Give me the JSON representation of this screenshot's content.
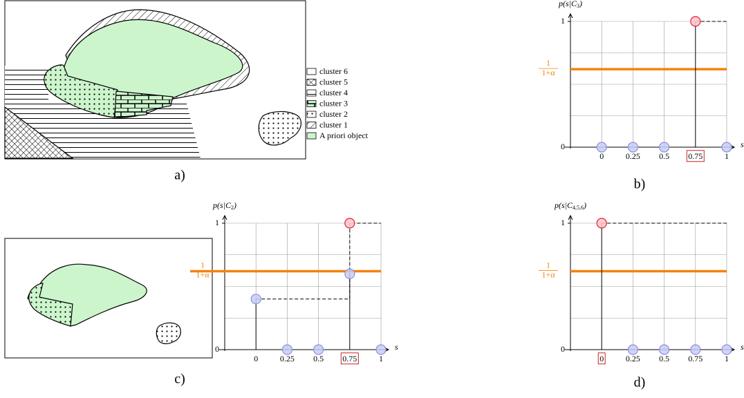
{
  "figure": {
    "panel_labels": [
      "a)",
      "b)",
      "c)",
      "d)"
    ],
    "legend": [
      {
        "label": "cluster 6",
        "pattern": "none"
      },
      {
        "label": "cluster 5",
        "pattern": "cross"
      },
      {
        "label": "cluster 4",
        "pattern": "hlines"
      },
      {
        "label": "cluster 3",
        "pattern": "brick"
      },
      {
        "label": "cluster 2",
        "pattern": "dots"
      },
      {
        "label": "cluster 1",
        "pattern": "diag"
      },
      {
        "label": "A priori object",
        "pattern": "green"
      }
    ]
  },
  "chart_data": [
    {
      "type": "stem",
      "ylabel": {
        "text": "p(s|C",
        "sub": "3",
        "end": ")"
      },
      "xlabel": "s",
      "x": [
        0,
        0.25,
        0.5,
        0.75,
        1
      ],
      "series": [
        {
          "color": "#c8ccf5",
          "edgecolor": "#8a90e0",
          "values": [
            0,
            0,
            0,
            null,
            0
          ]
        },
        {
          "color": "#ffc4cc",
          "edgecolor": "#e0202e",
          "values": [
            null,
            null,
            null,
            1,
            null
          ]
        }
      ],
      "xlim": [
        -0.25,
        1
      ],
      "ylim": [
        0,
        1
      ],
      "xticks": [
        0,
        0.25,
        0.5,
        0.75,
        1
      ],
      "yticks": [
        0,
        1
      ],
      "grid": true,
      "grid_step": 0.25,
      "boxed_xtick": 0.75,
      "threshold": 0.62,
      "threshold_color": "#f5820f",
      "threshold_label": {
        "numerator": "1",
        "denominator": "1+α"
      }
    },
    {
      "type": "stem",
      "ylabel": {
        "text": "p(s|C",
        "sub": "2",
        "end": ")"
      },
      "xlabel": "s",
      "x": [
        0,
        0.25,
        0.5,
        0.75,
        1
      ],
      "series": [
        {
          "color": "#c8ccf5",
          "edgecolor": "#8a90e0",
          "values": [
            0.4,
            0,
            0,
            0.6,
            0
          ]
        },
        {
          "color": "#ffc4cc",
          "edgecolor": "#e0202e",
          "values": [
            null,
            null,
            null,
            1,
            null
          ]
        }
      ],
      "xlim": [
        -0.25,
        1
      ],
      "ylim": [
        0,
        1
      ],
      "xticks": [
        0,
        0.25,
        0.5,
        0.75,
        1
      ],
      "yticks": [
        0,
        1
      ],
      "grid": true,
      "grid_step": 0.25,
      "boxed_xtick": 0.75,
      "threshold": 0.62,
      "threshold_color": "#f5820f",
      "threshold_label": {
        "numerator": "1",
        "denominator": "1+α"
      }
    },
    {
      "type": "stem",
      "ylabel": {
        "text": "p(s|C",
        "sub": "4,5,6",
        "end": ")"
      },
      "xlabel": "s",
      "x": [
        0,
        0.25,
        0.5,
        0.75,
        1
      ],
      "series": [
        {
          "color": "#c8ccf5",
          "edgecolor": "#8a90e0",
          "values": [
            null,
            0,
            0,
            0,
            0
          ]
        },
        {
          "color": "#ffc4cc",
          "edgecolor": "#e0202e",
          "values": [
            1,
            null,
            null,
            null,
            null
          ]
        }
      ],
      "xlim": [
        -0.25,
        1
      ],
      "ylim": [
        0,
        1
      ],
      "xticks": [
        0,
        0.25,
        0.5,
        0.75,
        1
      ],
      "yticks": [
        0,
        1
      ],
      "grid": true,
      "grid_step": 0.25,
      "boxed_xtick": 0,
      "threshold": 0.62,
      "threshold_color": "#f5820f",
      "threshold_label": {
        "numerator": "1",
        "denominator": "1+α"
      }
    }
  ]
}
